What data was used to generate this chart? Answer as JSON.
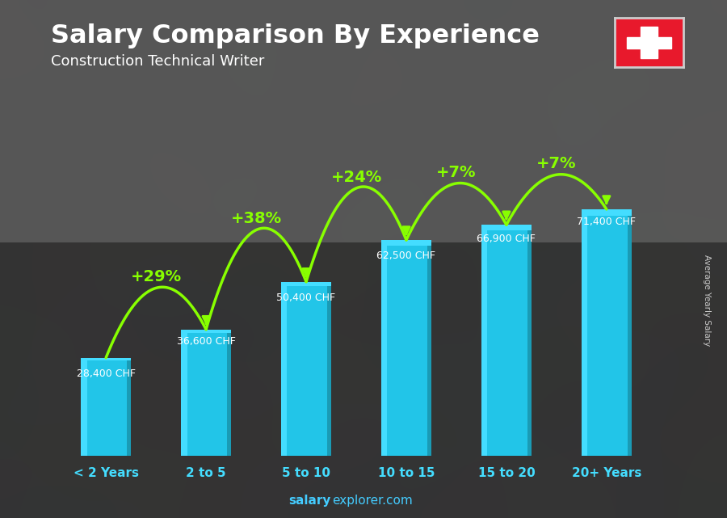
{
  "title": "Salary Comparison By Experience",
  "subtitle": "Construction Technical Writer",
  "categories": [
    "< 2 Years",
    "2 to 5",
    "5 to 10",
    "10 to 15",
    "15 to 20",
    "20+ Years"
  ],
  "values": [
    28400,
    36600,
    50400,
    62500,
    66900,
    71400
  ],
  "salary_labels": [
    "28,400 CHF",
    "36,600 CHF",
    "50,400 CHF",
    "62,500 CHF",
    "66,900 CHF",
    "71,400 CHF"
  ],
  "pct_labels": [
    "+29%",
    "+38%",
    "+24%",
    "+7%",
    "+7%"
  ],
  "bar_color_face": "#22c5e8",
  "bar_color_side": "#1a9bb5",
  "bar_color_top": "#44ddff",
  "bg_color": "#3a4a5a",
  "title_color": "#ffffff",
  "subtitle_color": "#ffffff",
  "salary_label_color": "#ffffff",
  "pct_color": "#88ff00",
  "xlabel_color": "#44ddff",
  "watermark_bold": "salary",
  "watermark_normal": "explorer.com",
  "watermark_color": "#44ccff",
  "ylabel_text": "Average Yearly Salary",
  "ylim": [
    0,
    90000
  ],
  "bar_width": 0.5,
  "arc_heights": [
    12000,
    15000,
    15000,
    12000,
    10000
  ],
  "salary_label_offsets": [
    -3000,
    -2000,
    -3000,
    -3000,
    -2500,
    -2000
  ]
}
